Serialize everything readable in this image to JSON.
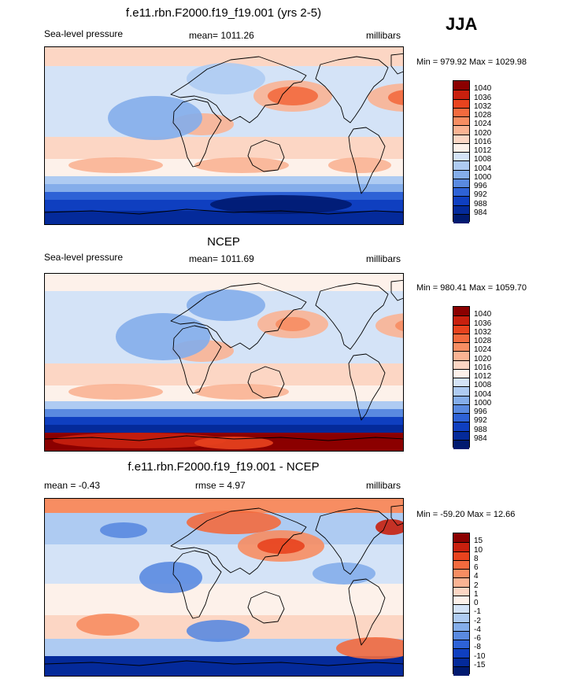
{
  "season": "JJA",
  "panels": [
    {
      "title": "f.e11.rbn.F2000.f19_f19.001 (yrs 2-5)",
      "left_label": "Sea-level pressure",
      "center_label": "mean= 1011.26",
      "right_label": "millibars",
      "minmax": "Min = 979.92 Max = 1029.98"
    },
    {
      "title": "NCEP",
      "left_label": "Sea-level pressure",
      "center_label": "mean= 1011.69",
      "right_label": "millibars",
      "minmax": "Min = 980.41 Max = 1059.70"
    },
    {
      "title": "f.e11.rbn.F2000.f19_f19.001 - NCEP",
      "left_label": "mean =  -0.43",
      "center_label": "rmse =   4.97",
      "right_label": "millibars",
      "minmax": "Min = -59.20 Max =  12.66"
    }
  ],
  "chart_data": [
    {
      "type": "heatmap",
      "title": "f.e11.rbn.F2000.f19_f19.001 (yrs 2-5)",
      "variable": "Sea-level pressure",
      "units": "millibars",
      "mean": 1011.26,
      "min": 979.92,
      "max": 1029.98,
      "colorbar_levels": [
        "1040",
        "1036",
        "1032",
        "1028",
        "1024",
        "1020",
        "1016",
        "1012",
        "1008",
        "1004",
        "1000",
        "996",
        "992",
        "988",
        "984"
      ],
      "colorbar_colors": [
        "#8b0000",
        "#c8200e",
        "#e8431e",
        "#f36a3e",
        "#f78d62",
        "#fab393",
        "#fcd6c4",
        "#fdf1ea",
        "#d4e3f7",
        "#aecbf2",
        "#84adea",
        "#5a8ae0",
        "#2e62d6",
        "#0f3fc0",
        "#042a9a",
        "#001a70"
      ]
    },
    {
      "type": "heatmap",
      "title": "NCEP",
      "variable": "Sea-level pressure",
      "units": "millibars",
      "mean": 1011.69,
      "min": 980.41,
      "max": 1059.7,
      "colorbar_levels": [
        "1040",
        "1036",
        "1032",
        "1028",
        "1024",
        "1020",
        "1016",
        "1012",
        "1008",
        "1004",
        "1000",
        "996",
        "992",
        "988",
        "984"
      ],
      "colorbar_colors": [
        "#8b0000",
        "#c8200e",
        "#e8431e",
        "#f36a3e",
        "#f78d62",
        "#fab393",
        "#fcd6c4",
        "#fdf1ea",
        "#d4e3f7",
        "#aecbf2",
        "#84adea",
        "#5a8ae0",
        "#2e62d6",
        "#0f3fc0",
        "#042a9a",
        "#001a70"
      ]
    },
    {
      "type": "heatmap",
      "title": "f.e11.rbn.F2000.f19_f19.001 - NCEP",
      "units": "millibars",
      "mean": -0.43,
      "rmse": 4.97,
      "min": -59.2,
      "max": 12.66,
      "colorbar_levels": [
        "15",
        "10",
        "8",
        "6",
        "4",
        "2",
        "1",
        "0",
        "-1",
        "-2",
        "-4",
        "-6",
        "-8",
        "-10",
        "-15"
      ],
      "colorbar_colors": [
        "#8b0000",
        "#c8200e",
        "#e8431e",
        "#f36a3e",
        "#f78d62",
        "#fab393",
        "#fcd6c4",
        "#fdf1ea",
        "#d4e3f7",
        "#aecbf2",
        "#84adea",
        "#5a8ae0",
        "#2e62d6",
        "#0f3fc0",
        "#042a9a",
        "#001a70"
      ]
    }
  ]
}
